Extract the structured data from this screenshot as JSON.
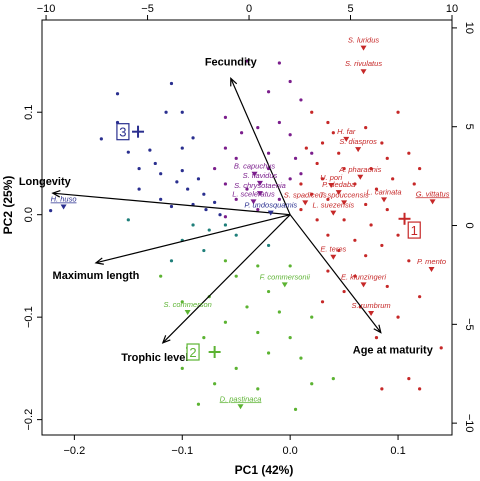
{
  "chart_data": {
    "type": "scatter",
    "title": "",
    "xlabel": "PC1 (42%)",
    "ylabel": "PC2 (25%)",
    "xlim": [
      -0.23,
      0.15
    ],
    "ylim": [
      -0.215,
      0.19
    ],
    "x_ticks": [
      -0.2,
      -0.1,
      0.0,
      0.1
    ],
    "x_tick_labels": [
      "−0.2",
      "−0.1",
      "0.0",
      "0.1"
    ],
    "y_ticks": [
      -0.2,
      -0.1,
      0.0,
      0.1
    ],
    "y_tick_labels": [
      "−0.2",
      "−0.1",
      "0.0",
      "0.1"
    ],
    "top_axis": {
      "range": [
        -10.2,
        10.0
      ],
      "ticks": [
        -10,
        -5,
        0,
        5,
        10
      ],
      "tick_labels": [
        "−10",
        "−5",
        "0",
        "5",
        "10"
      ]
    },
    "right_axis": {
      "range": [
        -10.6,
        10.4
      ],
      "ticks": [
        -10,
        -5,
        0,
        5,
        10
      ],
      "tick_labels": [
        "−10",
        "−5",
        "0",
        "5",
        "10"
      ]
    },
    "colors": {
      "cluster1": "#c62828",
      "cluster2": "#5cb332",
      "cluster3": "#2a2f8f",
      "purple": "#7b1e8c",
      "teal": "#1f7f7a",
      "arrow": "#000000"
    },
    "loadings": [
      {
        "label": "Fecundity",
        "x": -0.055,
        "y": 0.133
      },
      {
        "label": "Longevity",
        "x": -0.22,
        "y": 0.021
      },
      {
        "label": "Maximum length",
        "x": -0.18,
        "y": -0.047
      },
      {
        "label": "Trophic level",
        "x": -0.118,
        "y": -0.125
      },
      {
        "label": "Age at maturity",
        "x": 0.084,
        "y": -0.115
      }
    ],
    "cluster_labels": [
      {
        "label": "1",
        "x": 0.115,
        "y": -0.015,
        "color": "#c62828"
      },
      {
        "label": "2",
        "x": -0.09,
        "y": -0.134,
        "color": "#5cb332"
      },
      {
        "label": "3",
        "x": -0.155,
        "y": 0.081,
        "color": "#2a2f8f"
      }
    ],
    "centroids": [
      {
        "x": 0.106,
        "y": -0.004,
        "color": "#c62828"
      },
      {
        "x": -0.07,
        "y": -0.134,
        "color": "#5cb332"
      },
      {
        "x": -0.141,
        "y": 0.081,
        "color": "#2a2f8f"
      }
    ],
    "species": [
      {
        "label": "S. luridus",
        "x": 0.068,
        "y": 0.163,
        "color": "#c62828",
        "underline": false
      },
      {
        "label": "S. rivulatus",
        "x": 0.068,
        "y": 0.14,
        "color": "#c62828",
        "underline": false
      },
      {
        "label": "H. far",
        "x": 0.052,
        "y": 0.074,
        "color": "#c62828",
        "underline": false
      },
      {
        "label": "S. diaspros",
        "x": 0.063,
        "y": 0.064,
        "color": "#c62828",
        "underline": false
      },
      {
        "label": "A. pharaonis",
        "x": 0.065,
        "y": 0.037,
        "color": "#c62828",
        "underline": false
      },
      {
        "label": "U. pori",
        "x": 0.038,
        "y": 0.029,
        "color": "#c62828",
        "underline": false
      },
      {
        "label": "P. dedaba",
        "x": 0.045,
        "y": 0.022,
        "color": "#c62828",
        "underline": false
      },
      {
        "label": "L. carinata",
        "x": 0.087,
        "y": 0.015,
        "color": "#c62828",
        "underline": false
      },
      {
        "label": "G. vittatus",
        "x": 0.132,
        "y": 0.013,
        "color": "#c62828",
        "underline": true
      },
      {
        "label": "S. spadiceus",
        "x": 0.014,
        "y": 0.012,
        "color": "#c62828",
        "underline": false
      },
      {
        "label": "T. spouccensis",
        "x": 0.05,
        "y": 0.012,
        "color": "#c62828",
        "underline": false
      },
      {
        "label": "L. suezensis",
        "x": 0.04,
        "y": 0.002,
        "color": "#c62828",
        "underline": false
      },
      {
        "label": "E. teres",
        "x": 0.04,
        "y": -0.041,
        "color": "#c62828",
        "underline": false
      },
      {
        "label": "P. mento",
        "x": 0.131,
        "y": -0.053,
        "color": "#c62828",
        "underline": false
      },
      {
        "label": "E. klunzingeri",
        "x": 0.068,
        "y": -0.068,
        "color": "#c62828",
        "underline": false
      },
      {
        "label": "S. rumbrum",
        "x": 0.075,
        "y": -0.096,
        "color": "#c62828",
        "underline": false
      },
      {
        "label": "B. capuchus",
        "x": -0.033,
        "y": 0.04,
        "color": "#7b1e8c",
        "underline": false
      },
      {
        "label": "S. flavidus",
        "x": -0.028,
        "y": 0.031,
        "color": "#7b1e8c",
        "underline": false
      },
      {
        "label": "S. chrysotaenia",
        "x": -0.028,
        "y": 0.021,
        "color": "#7b1e8c",
        "underline": false
      },
      {
        "label": "L. sceleratus",
        "x": -0.034,
        "y": 0.013,
        "color": "#7b1e8c",
        "underline": false
      },
      {
        "label": "P. undosquamis",
        "x": -0.018,
        "y": 0.002,
        "color": "#2a2f8f",
        "underline": false
      },
      {
        "label": "H. huso",
        "x": -0.21,
        "y": 0.008,
        "color": "#2a2f8f",
        "underline": true
      },
      {
        "label": "F. commersonii",
        "x": -0.005,
        "y": -0.068,
        "color": "#5cb332",
        "underline": false
      },
      {
        "label": "S. commerson",
        "x": -0.095,
        "y": -0.095,
        "color": "#5cb332",
        "underline": false
      },
      {
        "label": "D. pastinaca",
        "x": -0.046,
        "y": -0.187,
        "color": "#5cb332",
        "underline": true
      }
    ],
    "points": [
      {
        "x": -0.222,
        "y": 0.004,
        "color": "#2a2f8f"
      },
      {
        "x": -0.16,
        "y": 0.118,
        "color": "#2a2f8f"
      },
      {
        "x": -0.11,
        "y": 0.128,
        "color": "#2a2f8f"
      },
      {
        "x": -0.16,
        "y": 0.09,
        "color": "#2a2f8f"
      },
      {
        "x": -0.175,
        "y": 0.074,
        "color": "#2a2f8f"
      },
      {
        "x": -0.15,
        "y": 0.061,
        "color": "#2a2f8f"
      },
      {
        "x": -0.13,
        "y": 0.063,
        "color": "#2a2f8f"
      },
      {
        "x": -0.125,
        "y": 0.05,
        "color": "#2a2f8f"
      },
      {
        "x": -0.14,
        "y": 0.045,
        "color": "#2a2f8f"
      },
      {
        "x": -0.12,
        "y": 0.04,
        "color": "#2a2f8f"
      },
      {
        "x": -0.1,
        "y": 0.043,
        "color": "#2a2f8f"
      },
      {
        "x": -0.105,
        "y": 0.032,
        "color": "#2a2f8f"
      },
      {
        "x": -0.095,
        "y": 0.025,
        "color": "#2a2f8f"
      },
      {
        "x": -0.085,
        "y": 0.035,
        "color": "#2a2f8f"
      },
      {
        "x": -0.14,
        "y": 0.025,
        "color": "#2a2f8f"
      },
      {
        "x": -0.12,
        "y": 0.015,
        "color": "#2a2f8f"
      },
      {
        "x": -0.11,
        "y": 0.008,
        "color": "#2a2f8f"
      },
      {
        "x": -0.09,
        "y": 0.01,
        "color": "#2a2f8f"
      },
      {
        "x": -0.08,
        "y": 0.02,
        "color": "#2a2f8f"
      },
      {
        "x": -0.078,
        "y": 0.005,
        "color": "#2a2f8f"
      },
      {
        "x": -0.07,
        "y": 0.012,
        "color": "#2a2f8f"
      },
      {
        "x": -0.065,
        "y": 0.0,
        "color": "#2a2f8f"
      },
      {
        "x": -0.1,
        "y": 0.065,
        "color": "#2a2f8f"
      },
      {
        "x": -0.09,
        "y": 0.075,
        "color": "#2a2f8f"
      },
      {
        "x": -0.115,
        "y": 0.1,
        "color": "#2a2f8f"
      },
      {
        "x": -0.1,
        "y": 0.1,
        "color": "#2a2f8f"
      },
      {
        "x": -0.04,
        "y": 0.15,
        "color": "#7b1e8c"
      },
      {
        "x": -0.01,
        "y": 0.148,
        "color": "#7b1e8c"
      },
      {
        "x": 0.0,
        "y": 0.13,
        "color": "#7b1e8c"
      },
      {
        "x": -0.02,
        "y": 0.12,
        "color": "#7b1e8c"
      },
      {
        "x": 0.01,
        "y": 0.112,
        "color": "#7b1e8c"
      },
      {
        "x": -0.06,
        "y": 0.095,
        "color": "#7b1e8c"
      },
      {
        "x": -0.045,
        "y": 0.08,
        "color": "#7b1e8c"
      },
      {
        "x": -0.03,
        "y": 0.085,
        "color": "#7b1e8c"
      },
      {
        "x": -0.01,
        "y": 0.09,
        "color": "#7b1e8c"
      },
      {
        "x": 0.0,
        "y": 0.078,
        "color": "#7b1e8c"
      },
      {
        "x": -0.06,
        "y": 0.065,
        "color": "#7b1e8c"
      },
      {
        "x": -0.05,
        "y": 0.055,
        "color": "#7b1e8c"
      },
      {
        "x": -0.02,
        "y": 0.06,
        "color": "#7b1e8c"
      },
      {
        "x": 0.005,
        "y": 0.055,
        "color": "#7b1e8c"
      },
      {
        "x": 0.02,
        "y": 0.06,
        "color": "#7b1e8c"
      },
      {
        "x": -0.07,
        "y": 0.045,
        "color": "#7b1e8c"
      },
      {
        "x": -0.02,
        "y": 0.045,
        "color": "#7b1e8c"
      },
      {
        "x": 0.0,
        "y": 0.035,
        "color": "#7b1e8c"
      },
      {
        "x": 0.01,
        "y": 0.04,
        "color": "#7b1e8c"
      },
      {
        "x": -0.06,
        "y": 0.03,
        "color": "#7b1e8c"
      },
      {
        "x": -0.04,
        "y": 0.025,
        "color": "#7b1e8c"
      },
      {
        "x": -0.05,
        "y": 0.015,
        "color": "#7b1e8c"
      },
      {
        "x": -0.01,
        "y": 0.015,
        "color": "#7b1e8c"
      },
      {
        "x": -0.03,
        "y": 0.005,
        "color": "#7b1e8c"
      },
      {
        "x": -0.06,
        "y": -0.002,
        "color": "#7b1e8c"
      },
      {
        "x": 0.02,
        "y": 0.1,
        "color": "#c62828"
      },
      {
        "x": 0.035,
        "y": 0.09,
        "color": "#c62828"
      },
      {
        "x": 0.04,
        "y": 0.08,
        "color": "#c62828"
      },
      {
        "x": 0.03,
        "y": 0.07,
        "color": "#c62828"
      },
      {
        "x": 0.015,
        "y": 0.065,
        "color": "#c62828"
      },
      {
        "x": 0.045,
        "y": 0.06,
        "color": "#c62828"
      },
      {
        "x": 0.07,
        "y": 0.085,
        "color": "#c62828"
      },
      {
        "x": 0.1,
        "y": 0.1,
        "color": "#c62828"
      },
      {
        "x": 0.085,
        "y": 0.07,
        "color": "#c62828"
      },
      {
        "x": 0.09,
        "y": 0.055,
        "color": "#c62828"
      },
      {
        "x": 0.11,
        "y": 0.06,
        "color": "#c62828"
      },
      {
        "x": 0.12,
        "y": 0.045,
        "color": "#c62828"
      },
      {
        "x": 0.025,
        "y": 0.05,
        "color": "#c62828"
      },
      {
        "x": 0.05,
        "y": 0.045,
        "color": "#c62828"
      },
      {
        "x": 0.075,
        "y": 0.045,
        "color": "#c62828"
      },
      {
        "x": 0.095,
        "y": 0.035,
        "color": "#c62828"
      },
      {
        "x": 0.115,
        "y": 0.03,
        "color": "#c62828"
      },
      {
        "x": 0.01,
        "y": 0.03,
        "color": "#c62828"
      },
      {
        "x": 0.03,
        "y": 0.035,
        "color": "#c62828"
      },
      {
        "x": 0.06,
        "y": 0.03,
        "color": "#c62828"
      },
      {
        "x": 0.08,
        "y": 0.025,
        "color": "#c62828"
      },
      {
        "x": 0.02,
        "y": 0.02,
        "color": "#c62828"
      },
      {
        "x": 0.035,
        "y": 0.015,
        "color": "#c62828"
      },
      {
        "x": 0.07,
        "y": 0.01,
        "color": "#c62828"
      },
      {
        "x": 0.09,
        "y": 0.005,
        "color": "#c62828"
      },
      {
        "x": 0.01,
        "y": 0.005,
        "color": "#c62828"
      },
      {
        "x": 0.025,
        "y": -0.005,
        "color": "#c62828"
      },
      {
        "x": 0.05,
        "y": -0.005,
        "color": "#c62828"
      },
      {
        "x": 0.075,
        "y": -0.01,
        "color": "#c62828"
      },
      {
        "x": 0.1,
        "y": -0.02,
        "color": "#c62828"
      },
      {
        "x": 0.035,
        "y": -0.02,
        "color": "#c62828"
      },
      {
        "x": 0.06,
        "y": -0.025,
        "color": "#c62828"
      },
      {
        "x": 0.085,
        "y": -0.03,
        "color": "#c62828"
      },
      {
        "x": 0.045,
        "y": -0.035,
        "color": "#c62828"
      },
      {
        "x": 0.07,
        "y": -0.04,
        "color": "#c62828"
      },
      {
        "x": 0.11,
        "y": -0.045,
        "color": "#c62828"
      },
      {
        "x": 0.035,
        "y": -0.055,
        "color": "#c62828"
      },
      {
        "x": 0.06,
        "y": -0.06,
        "color": "#c62828"
      },
      {
        "x": 0.09,
        "y": -0.07,
        "color": "#c62828"
      },
      {
        "x": 0.05,
        "y": -0.075,
        "color": "#c62828"
      },
      {
        "x": 0.12,
        "y": -0.08,
        "color": "#c62828"
      },
      {
        "x": 0.03,
        "y": -0.085,
        "color": "#c62828"
      },
      {
        "x": 0.065,
        "y": -0.09,
        "color": "#c62828"
      },
      {
        "x": 0.1,
        "y": -0.1,
        "color": "#c62828"
      },
      {
        "x": 0.08,
        "y": -0.12,
        "color": "#c62828"
      },
      {
        "x": 0.14,
        "y": -0.13,
        "color": "#c62828"
      },
      {
        "x": 0.12,
        "y": -0.17,
        "color": "#c62828"
      },
      {
        "x": 0.085,
        "y": -0.17,
        "color": "#c62828"
      },
      {
        "x": 0.11,
        "y": -0.16,
        "color": "#c62828"
      },
      {
        "x": -0.09,
        "y": -0.01,
        "color": "#1f7f7a"
      },
      {
        "x": -0.075,
        "y": -0.015,
        "color": "#1f7f7a"
      },
      {
        "x": -0.06,
        "y": -0.01,
        "color": "#1f7f7a"
      },
      {
        "x": -0.1,
        "y": -0.025,
        "color": "#1f7f7a"
      },
      {
        "x": -0.05,
        "y": -0.02,
        "color": "#1f7f7a"
      },
      {
        "x": -0.08,
        "y": -0.035,
        "color": "#1f7f7a"
      },
      {
        "x": -0.11,
        "y": -0.045,
        "color": "#1f7f7a"
      },
      {
        "x": -0.02,
        "y": -0.03,
        "color": "#1f7f7a"
      },
      {
        "x": -0.15,
        "y": -0.005,
        "color": "#1f7f7a"
      },
      {
        "x": -0.06,
        "y": -0.045,
        "color": "#5cb332"
      },
      {
        "x": -0.03,
        "y": -0.05,
        "color": "#5cb332"
      },
      {
        "x": 0.0,
        "y": -0.05,
        "color": "#5cb332"
      },
      {
        "x": -0.05,
        "y": -0.06,
        "color": "#5cb332"
      },
      {
        "x": -0.12,
        "y": -0.06,
        "color": "#5cb332"
      },
      {
        "x": -0.02,
        "y": -0.075,
        "color": "#5cb332"
      },
      {
        "x": -0.075,
        "y": -0.08,
        "color": "#5cb332"
      },
      {
        "x": -0.1,
        "y": -0.085,
        "color": "#5cb332"
      },
      {
        "x": -0.04,
        "y": -0.09,
        "color": "#5cb332"
      },
      {
        "x": -0.01,
        "y": -0.095,
        "color": "#5cb332"
      },
      {
        "x": 0.02,
        "y": -0.1,
        "color": "#5cb332"
      },
      {
        "x": -0.06,
        "y": -0.105,
        "color": "#5cb332"
      },
      {
        "x": -0.03,
        "y": -0.115,
        "color": "#5cb332"
      },
      {
        "x": 0.0,
        "y": -0.12,
        "color": "#5cb332"
      },
      {
        "x": -0.08,
        "y": -0.12,
        "color": "#5cb332"
      },
      {
        "x": -0.02,
        "y": -0.135,
        "color": "#5cb332"
      },
      {
        "x": 0.01,
        "y": -0.14,
        "color": "#5cb332"
      },
      {
        "x": -0.05,
        "y": -0.15,
        "color": "#5cb332"
      },
      {
        "x": -0.1,
        "y": -0.15,
        "color": "#5cb332"
      },
      {
        "x": -0.07,
        "y": -0.165,
        "color": "#5cb332"
      },
      {
        "x": -0.03,
        "y": -0.17,
        "color": "#5cb332"
      },
      {
        "x": 0.02,
        "y": -0.165,
        "color": "#5cb332"
      },
      {
        "x": -0.085,
        "y": -0.185,
        "color": "#5cb332"
      },
      {
        "x": 0.005,
        "y": -0.19,
        "color": "#5cb332"
      },
      {
        "x": 0.04,
        "y": -0.16,
        "color": "#5cb332"
      },
      {
        "x": -0.095,
        "y": -0.13,
        "color": "#5cb332"
      }
    ]
  }
}
